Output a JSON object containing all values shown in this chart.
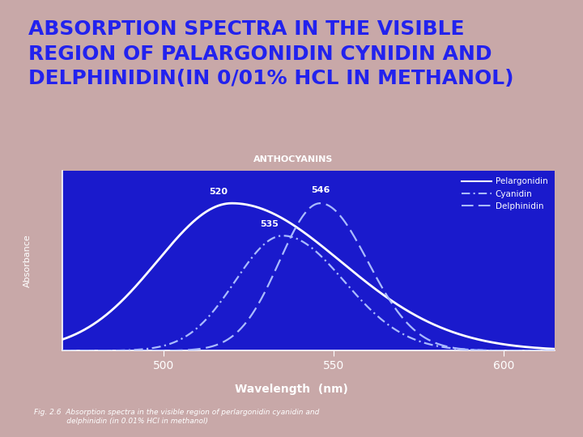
{
  "title_line1": "ABSORPTION SPECTRA IN THE VISIBLE",
  "title_line2": "REGION OF PALARGONIDIN CYNIDIN AND",
  "title_line3": "DELPHINIDIN(IN 0/01% HCL IN METHANOL)",
  "title_color": "#2222ee",
  "background_color": "#c8a8a8",
  "plot_bg_color": "#1a1acc",
  "chart_title": "ANTHOCYANINS",
  "chart_title_color": "#ffffff",
  "xlabel": "Wavelength  (nm)",
  "ylabel": "Absorbance",
  "xmin": 470,
  "xmax": 615,
  "peaks": {
    "pelargonidin": 520,
    "cyanidin": 535,
    "delphinidin": 546
  },
  "peak_widths_left": {
    "pelargonidin": 22,
    "cyanidin": 14,
    "delphinidin": 12
  },
  "peak_widths_right": {
    "pelargonidin": 32,
    "cyanidin": 18,
    "delphinidin": 14
  },
  "peak_heights": {
    "pelargonidin": 1.0,
    "cyanidin": 0.78,
    "delphinidin": 1.0
  },
  "line_color": "#ffffff",
  "dash_color": "#aabbff",
  "legend_labels": [
    "Pelargonidin",
    "Cyanidin",
    "Delphinidin"
  ],
  "fig_caption_line1": "Fig. 2.6  Absorption spectra in the visible region of perlargonidin cyanidin and",
  "fig_caption_line2": "              delphinidin (in 0.01% HCl in methanol)",
  "tick_color": "#ffffff",
  "xticks": [
    500,
    550,
    600
  ],
  "title_fontsize": 18,
  "axis_label_fontsize": 11
}
